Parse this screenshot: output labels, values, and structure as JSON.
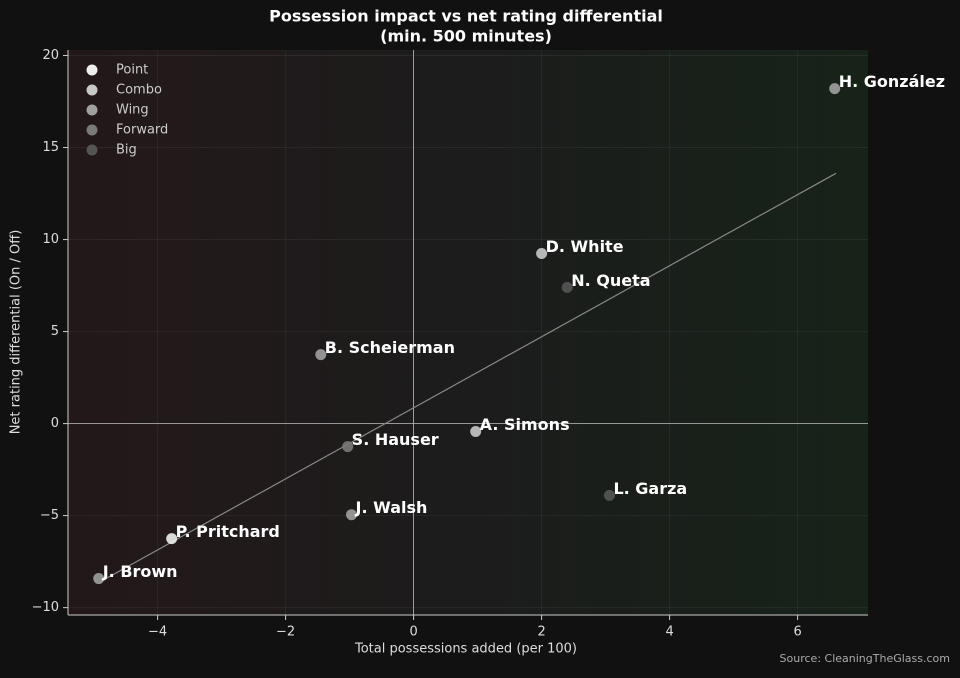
{
  "chart_data": {
    "type": "scatter",
    "title": "Possession impact vs net rating differential",
    "subtitle": "(min. 500 minutes)",
    "x_label": "Total possessions added (per 100)",
    "y_label": "Net rating differential (On / Off)",
    "source": "Source: CleaningTheGlass.com",
    "xlim": [
      -5.4,
      7.1
    ],
    "ylim": [
      -10.4,
      20.3
    ],
    "xticks": [
      {
        "value": -4,
        "label": "−4"
      },
      {
        "value": -2,
        "label": "−2"
      },
      0,
      2,
      4,
      6
    ],
    "yticks": [
      {
        "value": -10,
        "label": "−10"
      },
      {
        "value": -5,
        "label": "−5"
      },
      0,
      5,
      10,
      15,
      20
    ],
    "grid": true,
    "legend": "upper left",
    "hlines": [
      0
    ],
    "vlines": [
      0
    ],
    "trend": {
      "color": "#888888",
      "x": [
        -4.9,
        6.6
      ],
      "y": [
        -8.6,
        13.6
      ]
    },
    "series": [
      {
        "name": "Point",
        "color": "#eeeeee",
        "x": [
          -3.78
        ],
        "values": [
          -6.25
        ],
        "labels": [
          "P. Pritchard"
        ]
      },
      {
        "name": "Combo",
        "color": "#c8c8c8",
        "x": [
          2.0,
          0.97
        ],
        "values": [
          9.24,
          -0.43
        ],
        "labels": [
          "D. White",
          "A. Simons"
        ]
      },
      {
        "name": "Wing",
        "color": "#a0a0a0",
        "x": [
          6.58,
          -1.45,
          -0.97,
          -4.92
        ],
        "values": [
          18.2,
          3.75,
          -4.95,
          -8.42
        ],
        "labels": [
          "H. González",
          "B. Scheierman",
          "J. Walsh",
          "J. Brown"
        ]
      },
      {
        "name": "Forward",
        "color": "#7a7a7a",
        "x": [
          -1.03
        ],
        "values": [
          -1.25
        ],
        "labels": [
          "S. Hauser"
        ]
      },
      {
        "name": "Big",
        "color": "#555555",
        "x": [
          2.4,
          3.06
        ],
        "values": [
          7.4,
          -3.9
        ],
        "labels": [
          "N. Queta",
          "L. Garza"
        ]
      }
    ]
  }
}
